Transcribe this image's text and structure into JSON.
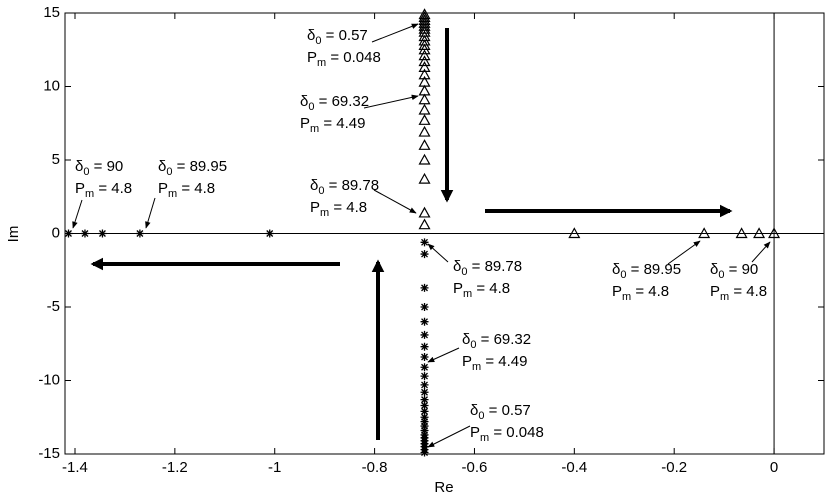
{
  "chart_data": {
    "type": "scatter",
    "x_label": "Re",
    "y_label": "Im",
    "xlim": [
      -1.42,
      0.1
    ],
    "ylim": [
      -15,
      15
    ],
    "xticks": [
      -1.4,
      -1.2,
      -1,
      -0.8,
      -0.6,
      -0.4,
      -0.2,
      0
    ],
    "yticks": [
      -15,
      -10,
      -5,
      0,
      5,
      10,
      15
    ],
    "series": [
      {
        "marker": "asterisk",
        "color": "#000000",
        "x": [
          -1.413,
          -1.38,
          -1.345,
          -1.27,
          -1.01,
          -0.7,
          -0.7,
          -0.7,
          -0.7,
          -0.7,
          -0.7,
          -0.7,
          -0.7,
          -0.7,
          -0.7,
          -0.7,
          -0.7,
          -0.7,
          -0.7,
          -0.7,
          -0.7,
          -0.7,
          -0.7,
          -0.7,
          -0.7,
          -0.7,
          -0.7,
          -0.7,
          -0.7,
          -0.7,
          -0.7
        ],
        "y": [
          0,
          0,
          0,
          0,
          0,
          -0.6,
          -1.4,
          -3.7,
          -5,
          -6,
          -6.9,
          -7.7,
          -8.4,
          -9.1,
          -9.7,
          -10.3,
          -10.8,
          -11.3,
          -11.7,
          -12.1,
          -12.5,
          -12.8,
          -13.1,
          -13.4,
          -13.7,
          -13.9,
          -14.1,
          -14.3,
          -14.5,
          -14.7,
          -14.9
        ]
      },
      {
        "marker": "triangle",
        "color": "#000000",
        "x": [
          -0.4,
          -0.14,
          -0.065,
          -0.03,
          0,
          -0.7,
          -0.7,
          -0.7,
          -0.7,
          -0.7,
          -0.7,
          -0.7,
          -0.7,
          -0.7,
          -0.7,
          -0.7,
          -0.7,
          -0.7,
          -0.7,
          -0.7,
          -0.7,
          -0.7,
          -0.7,
          -0.7,
          -0.7,
          -0.7,
          -0.7,
          -0.7,
          -0.7,
          -0.7,
          -0.7
        ],
        "y": [
          0,
          0,
          0,
          0,
          0,
          0.6,
          1.4,
          3.7,
          5,
          6,
          6.9,
          7.7,
          8.4,
          9.1,
          9.7,
          10.3,
          10.8,
          11.3,
          11.7,
          12.1,
          12.5,
          12.8,
          13.1,
          13.4,
          13.7,
          13.9,
          14.1,
          14.3,
          14.5,
          14.7,
          14.9
        ]
      }
    ],
    "annotations": [
      {
        "lines": [
          {
            "symbol": "δ",
            "subscript": "0",
            "text": " = 0.57"
          },
          {
            "symbol": "P",
            "subscript": "m",
            "text": " = 0.048"
          }
        ]
      },
      {
        "lines": [
          {
            "symbol": "δ",
            "subscript": "0",
            "text": " = 69.32"
          },
          {
            "symbol": "P",
            "subscript": "m",
            "text": " = 4.49"
          }
        ]
      },
      {
        "lines": [
          {
            "symbol": "δ",
            "subscript": "0",
            "text": " = 89.78"
          },
          {
            "symbol": "P",
            "subscript": "m",
            "text": " = 4.8"
          }
        ]
      },
      {
        "lines": [
          {
            "symbol": "δ",
            "subscript": "0",
            "text": " = 90"
          },
          {
            "symbol": "P",
            "subscript": "m",
            "text": " = 4.8"
          }
        ]
      },
      {
        "lines": [
          {
            "symbol": "δ",
            "subscript": "0",
            "text": " = 89.95"
          },
          {
            "symbol": "P",
            "subscript": "m",
            "text": " = 4.8"
          }
        ]
      },
      {
        "lines": [
          {
            "symbol": "δ",
            "subscript": "0",
            "text": " = 89.78"
          },
          {
            "symbol": "P",
            "subscript": "m",
            "text": " = 4.8"
          }
        ]
      },
      {
        "lines": [
          {
            "symbol": "δ",
            "subscript": "0",
            "text": " = 69.32"
          },
          {
            "symbol": "P",
            "subscript": "m",
            "text": " = 4.49"
          }
        ]
      },
      {
        "lines": [
          {
            "symbol": "δ",
            "subscript": "0",
            "text": " = 0.57"
          },
          {
            "symbol": "P",
            "subscript": "m",
            "text": " = 0.048"
          }
        ]
      },
      {
        "lines": [
          {
            "symbol": "δ",
            "subscript": "0",
            "text": " = 89.95"
          },
          {
            "symbol": "P",
            "subscript": "m",
            "text": " = 4.8"
          }
        ]
      },
      {
        "lines": [
          {
            "symbol": "δ",
            "subscript": "0",
            "text": " = 90"
          },
          {
            "symbol": "P",
            "subscript": "m",
            "text": " = 4.8"
          }
        ]
      }
    ]
  }
}
